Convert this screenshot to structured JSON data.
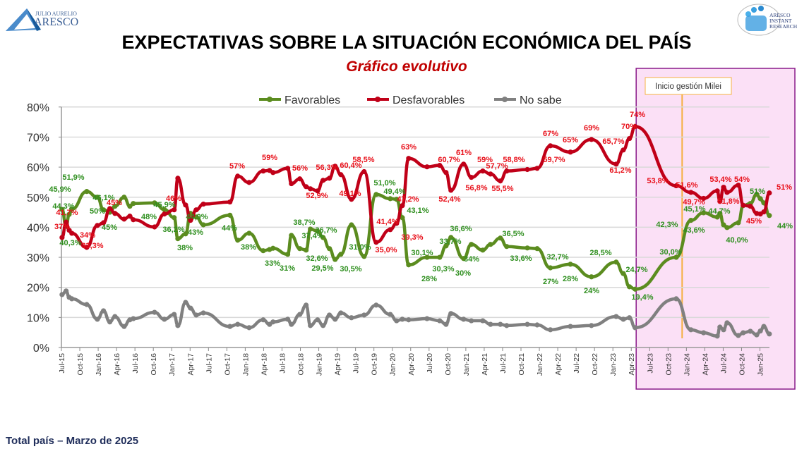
{
  "logos": {
    "left": {
      "line1": "JULIO AURELIO",
      "line2": "ARESCO"
    },
    "right": {
      "line1": "ARESCO",
      "line2": "INSTANT",
      "line3": "RESEARCH"
    }
  },
  "footer": "Total país – Marzo de 2025",
  "chart_data": {
    "type": "line",
    "title": "EXPECTATIVAS SOBRE LA SITUACIÓN ECONÓMICA DEL PAÍS",
    "subtitle": "Gráfico evolutivo",
    "ylim": [
      0,
      80
    ],
    "yticks": [
      "0%",
      "10%",
      "20%",
      "30%",
      "40%",
      "50%",
      "60%",
      "70%",
      "80%"
    ],
    "xlim": [
      "2015-07-01",
      "2025-05-01"
    ],
    "xticks": [
      "Jul-15",
      "Oct-15",
      "Jan-16",
      "Apr-16",
      "Jul-16",
      "Oct-16",
      "Jan-17",
      "Apr-17",
      "Jul-17",
      "Oct-17",
      "Jan-18",
      "Apr-18",
      "Jul-18",
      "Oct-18",
      "Jan-19",
      "Apr-19",
      "Jul-19",
      "Oct-19",
      "Jan-20",
      "Apr-20",
      "Jul-20",
      "Oct-20",
      "Jan-21",
      "Apr-21",
      "Jul-21",
      "Oct-21",
      "Jan-22",
      "Apr-22",
      "Jul-22",
      "Oct-22",
      "Jan-23",
      "Apr-23",
      "Jul-23",
      "Oct-23",
      "Jan-24",
      "Apr-24",
      "Jul-24",
      "Oct-24",
      "Jan-25"
    ],
    "grid": true,
    "legend_position": "top",
    "dates": [
      "2015-07-04",
      "2015-07-24",
      "2015-08-09",
      "2015-08-22",
      "2015-11-05",
      "2015-12-27",
      "2016-01-27",
      "2016-02-28",
      "2016-03-23",
      "2016-05-08",
      "2016-06-06",
      "2016-06-23",
      "2016-10-07",
      "2016-11-25",
      "2017-01-13",
      "2017-02-01",
      "2017-03-09",
      "2017-04-03",
      "2017-05-01",
      "2017-06-06",
      "2017-10-16",
      "2017-11-24",
      "2018-01-20",
      "2018-03-29",
      "2018-04-30",
      "2018-05-17",
      "2018-07-29",
      "2018-08-17",
      "2018-09-28",
      "2018-10-29",
      "2018-11-20",
      "2018-12-25",
      "2019-01-22",
      "2019-02-23",
      "2019-03-21",
      "2019-04-19",
      "2019-06-11",
      "2019-08-13",
      "2019-10-12",
      "2019-12-21",
      "2020-01-22",
      "2020-02-20",
      "2020-03-21",
      "2020-06-21",
      "2020-08-23",
      "2020-09-24",
      "2020-10-18",
      "2020-12-20",
      "2021-01-28",
      "2021-03-24",
      "2021-05-02",
      "2021-06-20",
      "2021-07-21",
      "2021-11-02",
      "2021-12-20",
      "2022-02-25",
      "2022-06-03",
      "2022-09-16",
      "2023-01-17",
      "2023-02-22",
      "2023-03-22",
      "2023-04-20",
      "2023-11-11",
      "2024-01-23",
      "2024-03-25",
      "2024-06-02",
      "2024-06-15",
      "2024-07-03",
      "2024-07-20",
      "2024-09-15",
      "2024-10-09",
      "2024-11-14",
      "2024-12-15",
      "2025-01-03",
      "2025-01-20",
      "2025-02-17"
    ],
    "series": [
      {
        "name": "Favorables",
        "color": "#5b8c1f",
        "label_color": "#2f8f1f",
        "values": [
          45.9,
          40.3,
          44.3,
          46.0,
          51.9,
          50.0,
          45.8,
          45.0,
          47.0,
          50.0,
          47.0,
          47.9,
          48.1,
          45.9,
          43.2,
          36.2,
          37.8,
          44.6,
          43.4,
          40.8,
          44.0,
          35.7,
          38.0,
          32.2,
          32.6,
          33.0,
          31.0,
          37.3,
          32.9,
          32.4,
          39.4,
          38.7,
          36.6,
          32.9,
          29.3,
          31.0,
          40.8,
          30.3,
          50.9,
          49.5,
          49.3,
          43.2,
          27.5,
          30.0,
          30.0,
          33.8,
          36.6,
          29.6,
          34.3,
          32.4,
          34.3,
          36.4,
          33.6,
          33.1,
          32.9,
          26.5,
          27.7,
          23.5,
          28.4,
          24.6,
          20.2,
          19.4,
          30.0,
          42.3,
          44.8,
          43.4,
          44.6,
          40.8,
          39.9,
          41.5,
          47.2,
          47.9,
          51.0,
          49.5,
          48.1,
          43.9
        ]
      },
      {
        "name": "Desfavorables",
        "color": "#c00018",
        "label_color": "#e8101a",
        "values": [
          36.6,
          41.7,
          39.0,
          38.0,
          33.3,
          40.6,
          41.5,
          46.2,
          44.6,
          42.7,
          43.7,
          42.5,
          40.1,
          44.4,
          45.8,
          56.3,
          47.4,
          42.3,
          45.8,
          47.7,
          48.4,
          57.0,
          54.9,
          58.7,
          58.9,
          58.2,
          59.6,
          54.5,
          56.1,
          53.5,
          52.8,
          52.1,
          55.6,
          56.3,
          60.3,
          57.5,
          49.3,
          58.5,
          35.0,
          39.2,
          41.3,
          47.2,
          62.9,
          60.1,
          60.6,
          58.2,
          52.3,
          61.0,
          56.6,
          58.7,
          57.7,
          55.4,
          58.7,
          59.2,
          59.6,
          67.1,
          65.0,
          69.2,
          61.0,
          65.7,
          69.5,
          73.5,
          53.8,
          51.6,
          49.6,
          52.1,
          48.6,
          53.3,
          51.6,
          54.0,
          47.3,
          47.0,
          44.6,
          44.4,
          45.1,
          51.4
        ]
      },
      {
        "name": "No sabe",
        "color": "#808080",
        "label_color": "#808080",
        "values": [
          17.6,
          18.8,
          16.7,
          16.2,
          14.3,
          9.4,
          12.2,
          8.5,
          10.3,
          7.0,
          9.2,
          9.6,
          11.7,
          9.4,
          11.0,
          7.3,
          15.0,
          13.1,
          10.8,
          11.5,
          7.0,
          7.7,
          6.6,
          9.2,
          7.7,
          8.5,
          9.4,
          7.7,
          11.0,
          14.1,
          7.3,
          9.2,
          7.3,
          10.8,
          9.4,
          11.5,
          9.9,
          10.8,
          14.1,
          11.0,
          8.9,
          9.4,
          9.2,
          9.6,
          8.9,
          7.7,
          11.3,
          9.4,
          8.9,
          8.9,
          7.7,
          7.7,
          7.3,
          7.7,
          7.5,
          5.9,
          7.0,
          7.3,
          10.3,
          9.4,
          9.9,
          6.6,
          16.2,
          5.9,
          4.9,
          3.8,
          6.8,
          5.9,
          8.2,
          4.0,
          4.9,
          5.4,
          4.2,
          5.5,
          7.0,
          4.5
        ]
      }
    ],
    "data_labels": [
      {
        "series": "Favorables",
        "text": "45,9%"
      },
      {
        "series": "Favorables",
        "text": "51,9%"
      },
      {
        "series": "Favorables",
        "text": "44,3%"
      },
      {
        "series": "Favorables",
        "text": "40,3%"
      },
      {
        "series": "Favorables",
        "text": "50%"
      },
      {
        "series": "Favorables",
        "text": "46,1%"
      },
      {
        "series": "Favorables",
        "text": "45%"
      },
      {
        "series": "Favorables",
        "text": "45,9%"
      },
      {
        "series": "Favorables",
        "text": "48%"
      },
      {
        "series": "Favorables",
        "text": "36,2%"
      },
      {
        "series": "Favorables",
        "text": "38%"
      },
      {
        "series": "Favorables",
        "text": "43%"
      },
      {
        "series": "Favorables",
        "text": "44,9%"
      },
      {
        "series": "Favorables",
        "text": "44%"
      },
      {
        "series": "Favorables",
        "text": "38%"
      },
      {
        "series": "Favorables",
        "text": "33%"
      },
      {
        "series": "Favorables",
        "text": "31%"
      },
      {
        "series": "Favorables",
        "text": "38,7%"
      },
      {
        "series": "Favorables",
        "text": "37,4%"
      },
      {
        "series": "Favorables",
        "text": "36,7%"
      },
      {
        "series": "Favorables",
        "text": "32,6%"
      },
      {
        "series": "Favorables",
        "text": "29,5%"
      },
      {
        "series": "Favorables",
        "text": "30,5%"
      },
      {
        "series": "Favorables",
        "text": "31,0%"
      },
      {
        "series": "Favorables",
        "text": "51,0%"
      },
      {
        "series": "Favorables",
        "text": "49,4%"
      },
      {
        "series": "Favorables",
        "text": "43,1%"
      },
      {
        "series": "Favorables",
        "text": "28%"
      },
      {
        "series": "Favorables",
        "text": "30,1%"
      },
      {
        "series": "Favorables",
        "text": "30,3%"
      },
      {
        "series": "Favorables",
        "text": "33,7%"
      },
      {
        "series": "Favorables",
        "text": "36,6%"
      },
      {
        "series": "Favorables",
        "text": "30%"
      },
      {
        "series": "Favorables",
        "text": "34%"
      },
      {
        "series": "Favorables",
        "text": "36,5%"
      },
      {
        "series": "Favorables",
        "text": "33,6%"
      },
      {
        "series": "Favorables",
        "text": "32,7%"
      },
      {
        "series": "Favorables",
        "text": "27%"
      },
      {
        "series": "Favorables",
        "text": "28%"
      },
      {
        "series": "Favorables",
        "text": "24%"
      },
      {
        "series": "Favorables",
        "text": "28,5%"
      },
      {
        "series": "Favorables",
        "text": "24,7%"
      },
      {
        "series": "Favorables",
        "text": "19,4%"
      },
      {
        "series": "Favorables",
        "text": "30,0%"
      },
      {
        "series": "Favorables",
        "text": "42,3%"
      },
      {
        "series": "Favorables",
        "text": "45,1%"
      },
      {
        "series": "Favorables",
        "text": "44,7%"
      },
      {
        "series": "Favorables",
        "text": "43,6%"
      },
      {
        "series": "Favorables",
        "text": "40,0%"
      },
      {
        "series": "Favorables",
        "text": "51%"
      },
      {
        "series": "Favorables",
        "text": "44%"
      },
      {
        "series": "Desfavorables",
        "text": "37%"
      },
      {
        "series": "Desfavorables",
        "text": "41,7%"
      },
      {
        "series": "Desfavorables",
        "text": "34%"
      },
      {
        "series": "Desfavorables",
        "text": "33,3%"
      },
      {
        "series": "Desfavorables",
        "text": "45%"
      },
      {
        "series": "Desfavorables",
        "text": "46%"
      },
      {
        "series": "Desfavorables",
        "text": "57%"
      },
      {
        "series": "Desfavorables",
        "text": "59%"
      },
      {
        "series": "Desfavorables",
        "text": "56%"
      },
      {
        "series": "Desfavorables",
        "text": "52,9%"
      },
      {
        "series": "Desfavorables",
        "text": "56,3%"
      },
      {
        "series": "Desfavorables",
        "text": "60,4%"
      },
      {
        "series": "Desfavorables",
        "text": "49,1%"
      },
      {
        "series": "Desfavorables",
        "text": "58,5%"
      },
      {
        "series": "Desfavorables",
        "text": "41,4%"
      },
      {
        "series": "Desfavorables",
        "text": "35,0%"
      },
      {
        "series": "Desfavorables",
        "text": "63%"
      },
      {
        "series": "Desfavorables",
        "text": "47,2%"
      },
      {
        "series": "Desfavorables",
        "text": "39,3%"
      },
      {
        "series": "Desfavorables",
        "text": "60,7%"
      },
      {
        "series": "Desfavorables",
        "text": "52,4%"
      },
      {
        "series": "Desfavorables",
        "text": "61%"
      },
      {
        "series": "Desfavorables",
        "text": "56,8%"
      },
      {
        "series": "Desfavorables",
        "text": "59%"
      },
      {
        "series": "Desfavorables",
        "text": "57,7%"
      },
      {
        "series": "Desfavorables",
        "text": "55,5%"
      },
      {
        "series": "Desfavorables",
        "text": "58,8%"
      },
      {
        "series": "Desfavorables",
        "text": "67%"
      },
      {
        "series": "Desfavorables",
        "text": "59,7%"
      },
      {
        "series": "Desfavorables",
        "text": "65%"
      },
      {
        "series": "Desfavorables",
        "text": "69%"
      },
      {
        "series": "Desfavorables",
        "text": "65,7%"
      },
      {
        "series": "Desfavorables",
        "text": "61,2%"
      },
      {
        "series": "Desfavorables",
        "text": "70%"
      },
      {
        "series": "Desfavorables",
        "text": "74%"
      },
      {
        "series": "Desfavorables",
        "text": "53,8%"
      },
      {
        "series": "Desfavorables",
        "text": "51,6%"
      },
      {
        "series": "Desfavorables",
        "text": "49,7%"
      },
      {
        "series": "Desfavorables",
        "text": "53,4%"
      },
      {
        "series": "Desfavorables",
        "text": "54%"
      },
      {
        "series": "Desfavorables",
        "text": "51,8%"
      },
      {
        "series": "Desfavorables",
        "text": "45%"
      },
      {
        "series": "Desfavorables",
        "text": "51%"
      }
    ],
    "highlight_region": {
      "start": "2023-04-25",
      "label": "Inicio gestión Milei",
      "marker_date": "2023-12-10",
      "fill": "#fbe0f6",
      "border": "#8a1a8a",
      "marker_color": "#f5b042"
    }
  }
}
